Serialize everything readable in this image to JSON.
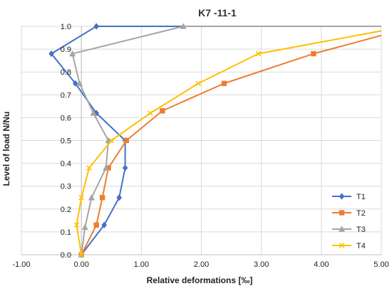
{
  "chart_data": {
    "type": "line",
    "title": "K7 -11-1",
    "xlabel": "Relative deformations [‰]",
    "ylabel": "Level of load N/Nu",
    "xlim": [
      -1.0,
      5.0
    ],
    "ylim": [
      0.0,
      1.0
    ],
    "x_ticks": [
      "-1.00",
      "0.00",
      "1.00",
      "2.00",
      "3.00",
      "4.00",
      "5.00"
    ],
    "y_ticks": [
      "0.0",
      "0.1",
      "0.2",
      "0.3",
      "0.4",
      "0.5",
      "0.6",
      "0.7",
      "0.8",
      "0.9",
      "1.0"
    ],
    "grid": true,
    "legend_position": "bottom-right",
    "series": [
      {
        "name": "T1",
        "color": "#4472C4",
        "marker": "diamond",
        "points": [
          [
            0.0,
            0.0
          ],
          [
            0.38,
            0.13
          ],
          [
            0.63,
            0.25
          ],
          [
            0.73,
            0.38
          ],
          [
            0.73,
            0.5
          ],
          [
            0.25,
            0.62
          ],
          [
            -0.1,
            0.75
          ],
          [
            -0.5,
            0.88
          ],
          [
            0.25,
            1.0
          ],
          [
            5.0,
            1.0
          ]
        ]
      },
      {
        "name": "T2",
        "color": "#ED7D31",
        "marker": "square",
        "points": [
          [
            0.0,
            0.0
          ],
          [
            0.25,
            0.13
          ],
          [
            0.35,
            0.25
          ],
          [
            0.45,
            0.38
          ],
          [
            0.75,
            0.5
          ],
          [
            1.35,
            0.63
          ],
          [
            2.38,
            0.75
          ],
          [
            3.87,
            0.88
          ],
          [
            5.0,
            0.96
          ]
        ]
      },
      {
        "name": "T3",
        "color": "#A5A5A5",
        "marker": "triangle",
        "points": [
          [
            0.0,
            0.0
          ],
          [
            0.06,
            0.12
          ],
          [
            0.17,
            0.25
          ],
          [
            0.41,
            0.38
          ],
          [
            0.45,
            0.5
          ],
          [
            0.2,
            0.62
          ],
          [
            -0.03,
            0.75
          ],
          [
            -0.15,
            0.88
          ],
          [
            1.7,
            1.0
          ],
          [
            5.0,
            1.0
          ]
        ]
      },
      {
        "name": "T4",
        "color": "#FFC000",
        "marker": "x",
        "points": [
          [
            0.0,
            0.0
          ],
          [
            -0.08,
            0.13
          ],
          [
            0.0,
            0.25
          ],
          [
            0.13,
            0.38
          ],
          [
            0.5,
            0.5
          ],
          [
            1.15,
            0.62
          ],
          [
            1.95,
            0.75
          ],
          [
            2.95,
            0.88
          ],
          [
            5.0,
            0.98
          ]
        ]
      }
    ]
  }
}
